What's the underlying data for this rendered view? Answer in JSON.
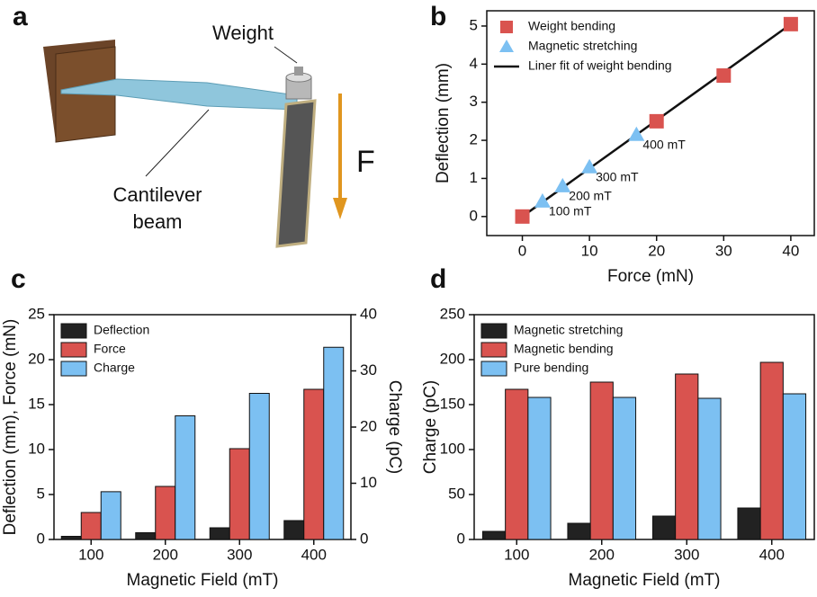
{
  "illustration": {
    "panel": "a",
    "weight_label": "Weight",
    "force_label": "F",
    "beam_label_lines": [
      "Cantilever",
      "beam"
    ]
  },
  "chart_data": [
    {
      "type": "scatter",
      "panel": "b",
      "x_label": "Force (mN)",
      "y_label": "Deflection (mm)",
      "xlim": [
        -5.3,
        43.5
      ],
      "xticks": [
        0,
        10,
        20,
        30,
        40
      ],
      "ylim": [
        -0.5,
        5.4
      ],
      "yticks": [
        0,
        1,
        2,
        3,
        4,
        5
      ],
      "legend": "upper left",
      "series": [
        {
          "name": "Weight bending",
          "marker": "square",
          "color": "#d9534f",
          "x": [
            0,
            20,
            30,
            40
          ],
          "values": [
            0,
            2.5,
            3.7,
            5.05
          ]
        },
        {
          "name": "Magnetic stretching",
          "marker": "triangle",
          "color": "#7cc0f2",
          "x": [
            3,
            6,
            10,
            17
          ],
          "values": [
            0.4,
            0.8,
            1.3,
            2.15
          ],
          "point_labels": [
            "100 mT",
            "200 mT",
            "300 mT",
            "400 mT"
          ]
        },
        {
          "name": "Liner fit of weight bending",
          "marker": "line",
          "color": "#111111",
          "x": [
            0,
            40
          ],
          "values": [
            0,
            5.05
          ]
        }
      ]
    },
    {
      "type": "bar",
      "panel": "c",
      "x_label": "Magnetic Field (mT)",
      "y_label": "Deflection (mm), Force (mN)",
      "y2_label": "Charge (pC)",
      "categories": [
        "100",
        "200",
        "300",
        "400"
      ],
      "ylim": [
        0,
        25
      ],
      "yticks": [
        0,
        5,
        10,
        15,
        20,
        25
      ],
      "y2lim": [
        0,
        40
      ],
      "y2ticks": [
        0,
        10,
        20,
        30,
        40
      ],
      "legend": "upper left",
      "series": [
        {
          "name": "Deflection",
          "color": "#222222",
          "values": [
            0.35,
            0.75,
            1.3,
            2.1
          ]
        },
        {
          "name": "Force",
          "color": "#d9534f",
          "values": [
            3.0,
            5.9,
            10.1,
            16.7
          ]
        },
        {
          "name": "Charge",
          "color": "#7cc0f2",
          "axis": "y2",
          "values": [
            8.5,
            22,
            26,
            34.2
          ]
        }
      ]
    },
    {
      "type": "bar",
      "panel": "d",
      "x_label": "Magnetic Field (mT)",
      "y_label": "Charge (pC)",
      "categories": [
        "100",
        "200",
        "300",
        "400"
      ],
      "ylim": [
        0,
        250
      ],
      "yticks": [
        0,
        50,
        100,
        150,
        200,
        250
      ],
      "legend": "upper left",
      "series": [
        {
          "name": "Magnetic stretching",
          "color": "#222222",
          "values": [
            9,
            18,
            26,
            35
          ]
        },
        {
          "name": "Magnetic bending",
          "color": "#d9534f",
          "values": [
            167,
            175,
            184,
            197
          ]
        },
        {
          "name": "Pure bending",
          "color": "#7cc0f2",
          "values": [
            158,
            158,
            157,
            162
          ]
        }
      ]
    }
  ]
}
